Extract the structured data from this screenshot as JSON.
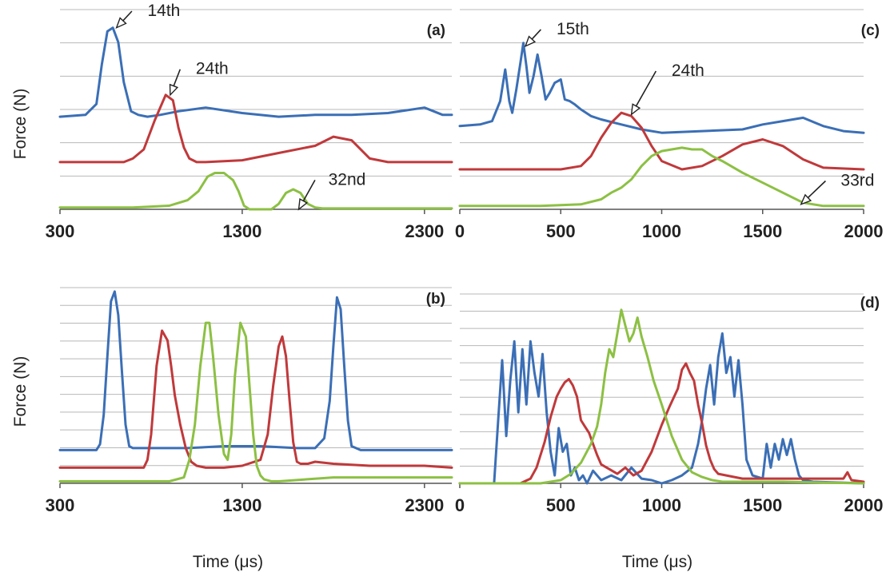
{
  "colors": {
    "blue": "#3b6fb6",
    "red": "#c0393b",
    "green": "#8cc043"
  },
  "chart_data": [
    {
      "id": "a",
      "type": "line",
      "panel_label": "(a)",
      "ylabel": "Force (N)",
      "xlabel": "",
      "xlim": [
        300,
        2450
      ],
      "xticks": [
        300,
        1300,
        2300
      ],
      "ylim": [
        0,
        11
      ],
      "grid": true,
      "annotations": [
        {
          "text": "14th",
          "point": [
            610,
            10.0
          ],
          "label_at": [
            870,
            11.0
          ]
        },
        {
          "text": "24th",
          "point": [
            905,
            6.3
          ],
          "label_at": [
            1135,
            7.8
          ]
        },
        {
          "text": "32nd",
          "point": [
            1610,
            0.0
          ],
          "label_at": [
            1875,
            1.7
          ]
        }
      ],
      "series": [
        {
          "color": "blue",
          "x": [
            300,
            440,
            500,
            530,
            560,
            590,
            620,
            650,
            690,
            730,
            780,
            850,
            950,
            1100,
            1300,
            1500,
            1700,
            1900,
            2100,
            2300,
            2400,
            2450
          ],
          "y": [
            5.1,
            5.2,
            5.8,
            8.0,
            9.8,
            10.0,
            9.2,
            7.0,
            5.4,
            5.2,
            5.1,
            5.2,
            5.4,
            5.6,
            5.3,
            5.1,
            5.2,
            5.2,
            5.3,
            5.6,
            5.2,
            5.2
          ]
        },
        {
          "color": "red",
          "x": [
            300,
            650,
            700,
            760,
            820,
            880,
            920,
            950,
            980,
            1010,
            1050,
            1100,
            1300,
            1500,
            1700,
            1800,
            1900,
            2000,
            2100,
            2300,
            2450
          ],
          "y": [
            2.6,
            2.6,
            2.8,
            3.3,
            4.9,
            6.3,
            6.0,
            4.5,
            3.4,
            2.8,
            2.6,
            2.6,
            2.7,
            3.1,
            3.5,
            4.0,
            3.8,
            2.8,
            2.6,
            2.6,
            2.6
          ]
        },
        {
          "color": "green",
          "x": [
            300,
            700,
            900,
            1000,
            1060,
            1110,
            1150,
            1200,
            1250,
            1280,
            1310,
            1340,
            1380,
            1420,
            1460,
            1500,
            1540,
            1580,
            1620,
            1660,
            1700,
            1740,
            1800,
            2000,
            2200,
            2450
          ],
          "y": [
            0.1,
            0.1,
            0.2,
            0.5,
            1.0,
            1.8,
            2.0,
            2.0,
            1.6,
            1.0,
            0.2,
            0.0,
            0.0,
            0.0,
            0.0,
            0.3,
            0.9,
            1.1,
            0.9,
            0.3,
            0.1,
            0.05,
            0.05,
            0.05,
            0.05,
            0.05
          ]
        }
      ]
    },
    {
      "id": "b",
      "type": "line",
      "panel_label": "(b)",
      "ylabel": "Force (N)",
      "xlabel": "Time (μs)",
      "xlim": [
        300,
        2450
      ],
      "xticks": [
        300,
        1300,
        2300
      ],
      "ylim": [
        0,
        10
      ],
      "grid": true,
      "annotations": [],
      "series": [
        {
          "color": "blue",
          "x": [
            300,
            500,
            520,
            540,
            560,
            580,
            600,
            620,
            640,
            660,
            680,
            700,
            800,
            1000,
            1200,
            1400,
            1600,
            1700,
            1750,
            1780,
            1800,
            1820,
            1840,
            1860,
            1880,
            1900,
            1950,
            2000,
            2300,
            2450
          ],
          "y": [
            1.7,
            1.7,
            2.0,
            3.5,
            6.5,
            9.3,
            9.8,
            8.6,
            5.7,
            3.0,
            1.9,
            1.8,
            1.8,
            1.8,
            1.9,
            1.9,
            1.8,
            1.8,
            2.3,
            4.2,
            7.0,
            9.5,
            8.9,
            6.0,
            3.2,
            1.9,
            1.7,
            1.7,
            1.7,
            1.7
          ]
        },
        {
          "color": "red",
          "x": [
            300,
            760,
            780,
            800,
            830,
            860,
            890,
            910,
            930,
            960,
            990,
            1020,
            1050,
            1100,
            1200,
            1300,
            1400,
            1440,
            1470,
            1500,
            1520,
            1540,
            1560,
            1580,
            1600,
            1620,
            1660,
            1700,
            1800,
            2000,
            2200,
            2300,
            2450
          ],
          "y": [
            0.8,
            0.8,
            1.2,
            2.5,
            6.0,
            7.8,
            7.3,
            6.0,
            4.5,
            3.0,
            1.8,
            1.1,
            0.9,
            0.8,
            0.8,
            0.9,
            1.2,
            2.5,
            5.0,
            7.0,
            7.5,
            6.5,
            4.2,
            2.1,
            1.1,
            1.0,
            1.0,
            1.1,
            1.0,
            0.9,
            0.9,
            0.9,
            0.8
          ]
        },
        {
          "color": "green",
          "x": [
            300,
            900,
            980,
            1010,
            1040,
            1070,
            1100,
            1120,
            1140,
            1170,
            1200,
            1220,
            1240,
            1260,
            1290,
            1320,
            1340,
            1360,
            1380,
            1400,
            1420,
            1460,
            1500,
            1800,
            2100,
            2300,
            2450
          ],
          "y": [
            0.1,
            0.1,
            0.3,
            1.2,
            3.0,
            6.0,
            8.2,
            8.2,
            6.5,
            3.5,
            1.5,
            1.2,
            2.5,
            5.5,
            8.2,
            7.5,
            5.0,
            2.5,
            0.9,
            0.4,
            0.2,
            0.1,
            0.1,
            0.3,
            0.3,
            0.3,
            0.3
          ]
        }
      ]
    },
    {
      "id": "c",
      "type": "line",
      "panel_label": "(c)",
      "ylabel": "",
      "xlabel": "",
      "xlim": [
        0,
        2000
      ],
      "xticks": [
        0,
        500,
        1000,
        1500,
        2000
      ],
      "ylim": [
        0,
        12
      ],
      "grid": true,
      "annotations": [
        {
          "text": "15th",
          "point": [
            325,
            9.8
          ],
          "label_at": [
            560,
            10.9
          ]
        },
        {
          "text": "24th",
          "point": [
            850,
            5.7
          ],
          "label_at": [
            1130,
            8.4
          ]
        },
        {
          "text": "33rd",
          "point": [
            1690,
            0.3
          ],
          "label_at": [
            1970,
            1.8
          ]
        }
      ],
      "series": [
        {
          "color": "blue",
          "x": [
            0,
            100,
            160,
            200,
            225,
            245,
            260,
            280,
            300,
            315,
            330,
            345,
            365,
            385,
            405,
            425,
            445,
            470,
            500,
            520,
            545,
            570,
            600,
            650,
            700,
            800,
            900,
            1000,
            1200,
            1400,
            1500,
            1600,
            1700,
            1800,
            1900,
            2000
          ],
          "y": [
            5.0,
            5.1,
            5.3,
            6.5,
            8.4,
            6.5,
            5.8,
            7.2,
            8.8,
            10.0,
            8.6,
            7.0,
            8.0,
            9.3,
            8.0,
            6.6,
            7.0,
            7.6,
            7.8,
            6.6,
            6.5,
            6.3,
            6.0,
            5.6,
            5.4,
            5.1,
            4.8,
            4.6,
            4.7,
            4.8,
            5.1,
            5.3,
            5.5,
            5.0,
            4.7,
            4.6
          ]
        },
        {
          "color": "red",
          "x": [
            0,
            200,
            400,
            500,
            600,
            650,
            700,
            750,
            800,
            850,
            900,
            950,
            1000,
            1100,
            1200,
            1300,
            1400,
            1500,
            1600,
            1700,
            1800,
            2000
          ],
          "y": [
            2.4,
            2.4,
            2.4,
            2.4,
            2.6,
            3.2,
            4.3,
            5.2,
            5.8,
            5.6,
            4.9,
            3.8,
            2.9,
            2.4,
            2.6,
            3.2,
            3.9,
            4.2,
            3.8,
            3.0,
            2.5,
            2.4
          ]
        },
        {
          "color": "green",
          "x": [
            0,
            400,
            600,
            700,
            750,
            800,
            850,
            900,
            950,
            1000,
            1050,
            1100,
            1150,
            1200,
            1250,
            1300,
            1400,
            1500,
            1600,
            1700,
            1800,
            1900,
            2000
          ],
          "y": [
            0.2,
            0.2,
            0.3,
            0.6,
            1.0,
            1.3,
            1.8,
            2.6,
            3.2,
            3.5,
            3.6,
            3.7,
            3.6,
            3.6,
            3.2,
            2.9,
            2.2,
            1.6,
            1.0,
            0.4,
            0.2,
            0.2,
            0.2
          ]
        }
      ]
    },
    {
      "id": "d",
      "type": "line",
      "panel_label": "(d)",
      "ylabel": "",
      "xlabel": "Time (μs)",
      "xlim": [
        0,
        2000
      ],
      "xticks": [
        0,
        500,
        1000,
        1500,
        2000
      ],
      "ylim": [
        0,
        12
      ],
      "grid": true,
      "annotations": [],
      "series": [
        {
          "color": "blue",
          "x": [
            0,
            170,
            190,
            210,
            230,
            250,
            270,
            290,
            310,
            330,
            350,
            370,
            390,
            410,
            430,
            450,
            470,
            490,
            510,
            530,
            550,
            570,
            590,
            610,
            630,
            660,
            700,
            750,
            800,
            850,
            900,
            950,
            1000,
            1050,
            1100,
            1150,
            1180,
            1200,
            1220,
            1240,
            1260,
            1280,
            1300,
            1320,
            1340,
            1360,
            1380,
            1400,
            1420,
            1450,
            1500,
            1520,
            1540,
            1560,
            1580,
            1600,
            1620,
            1640,
            1660,
            1680,
            1700,
            1750,
            2000
          ],
          "y": [
            0,
            0,
            4.0,
            7.8,
            3.0,
            6.5,
            9.0,
            4.5,
            8.5,
            5.0,
            9.0,
            7.0,
            5.5,
            8.2,
            4.5,
            2.0,
            0.5,
            3.5,
            2.0,
            2.5,
            0.5,
            1.0,
            0.2,
            0.5,
            0.0,
            0.8,
            0.2,
            0.5,
            0.2,
            1.0,
            0.3,
            0.2,
            0.0,
            0.2,
            0.5,
            1.0,
            2.5,
            4.0,
            6.0,
            7.5,
            5.0,
            8.0,
            9.5,
            7.0,
            8.0,
            5.5,
            7.8,
            5.0,
            1.5,
            0.5,
            0.3,
            2.5,
            1.0,
            2.5,
            1.5,
            2.8,
            1.8,
            2.8,
            1.5,
            0.5,
            0.2,
            0.1,
            0.0
          ]
        },
        {
          "color": "red",
          "x": [
            0,
            300,
            350,
            380,
            420,
            450,
            480,
            500,
            520,
            540,
            560,
            580,
            600,
            620,
            640,
            660,
            680,
            700,
            740,
            780,
            820,
            860,
            900,
            950,
            1000,
            1040,
            1080,
            1100,
            1120,
            1140,
            1160,
            1180,
            1200,
            1220,
            1240,
            1260,
            1280,
            1320,
            1400,
            1500,
            1600,
            1700,
            1800,
            1900,
            1920,
            1940,
            2000
          ],
          "y": [
            0,
            0,
            0.3,
            1.0,
            2.6,
            4.2,
            5.5,
            6.0,
            6.4,
            6.6,
            6.2,
            5.5,
            4.0,
            3.6,
            3.2,
            2.5,
            1.8,
            1.2,
            0.9,
            0.6,
            1.0,
            0.5,
            0.8,
            2.0,
            3.7,
            4.9,
            6.0,
            7.2,
            7.6,
            7.0,
            6.5,
            5.0,
            3.8,
            2.4,
            1.5,
            0.9,
            0.6,
            0.5,
            0.3,
            0.3,
            0.3,
            0.3,
            0.3,
            0.3,
            0.7,
            0.2,
            0.1
          ]
        },
        {
          "color": "green",
          "x": [
            0,
            400,
            500,
            550,
            600,
            650,
            680,
            700,
            720,
            740,
            760,
            780,
            800,
            820,
            840,
            860,
            880,
            900,
            930,
            960,
            1000,
            1050,
            1100,
            1150,
            1200,
            1250,
            1300,
            1400,
            1500,
            1600,
            2000
          ],
          "y": [
            0,
            0,
            0.2,
            0.6,
            1.3,
            2.5,
            3.6,
            5.0,
            7.0,
            8.5,
            8.0,
            9.5,
            11.0,
            10.0,
            9.0,
            9.5,
            10.5,
            9.3,
            8.0,
            6.5,
            5.0,
            3.0,
            1.5,
            0.7,
            0.4,
            0.2,
            0.1,
            0.1,
            0.1,
            0.1,
            0.0
          ]
        }
      ]
    }
  ]
}
